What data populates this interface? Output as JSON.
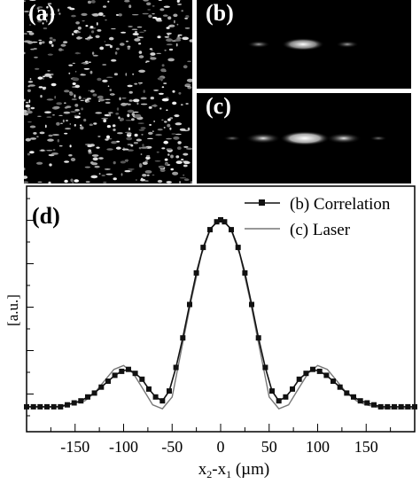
{
  "panels": {
    "a": {
      "label": "(a)"
    },
    "b": {
      "label": "(b)"
    },
    "c": {
      "label": "(c)"
    }
  },
  "chart_data": {
    "type": "line",
    "panel_label": "(d)",
    "xlabel": "x2-x1 (µm)",
    "ylabel": "[a.u.]",
    "xlim": [
      -200,
      200
    ],
    "xticks": [
      -150,
      -100,
      -50,
      0,
      50,
      100,
      150
    ],
    "series": [
      {
        "name": "(b) Correlation",
        "marker": "square",
        "color": "#111111",
        "x": [
          -200,
          -193,
          -186,
          -179,
          -172,
          -165,
          -158,
          -151,
          -144,
          -137,
          -130,
          -123,
          -116,
          -109,
          -102,
          -95,
          -88,
          -81,
          -74,
          -67,
          -60,
          -53,
          -46,
          -39,
          -32,
          -25,
          -18,
          -11,
          -4,
          0,
          4,
          11,
          18,
          25,
          32,
          39,
          46,
          53,
          60,
          67,
          74,
          81,
          88,
          95,
          102,
          109,
          116,
          123,
          130,
          137,
          144,
          151,
          158,
          165,
          172,
          179,
          186,
          193,
          200
        ],
        "y": [
          0.05,
          0.05,
          0.05,
          0.05,
          0.05,
          0.05,
          0.06,
          0.07,
          0.08,
          0.1,
          0.12,
          0.15,
          0.18,
          0.21,
          0.23,
          0.24,
          0.22,
          0.19,
          0.14,
          0.1,
          0.08,
          0.13,
          0.25,
          0.4,
          0.57,
          0.73,
          0.86,
          0.95,
          0.99,
          1.0,
          0.99,
          0.95,
          0.86,
          0.73,
          0.57,
          0.4,
          0.25,
          0.13,
          0.08,
          0.1,
          0.14,
          0.19,
          0.22,
          0.24,
          0.23,
          0.21,
          0.18,
          0.15,
          0.12,
          0.1,
          0.08,
          0.07,
          0.06,
          0.05,
          0.05,
          0.05,
          0.05,
          0.05,
          0.05
        ]
      },
      {
        "name": "(c) Laser",
        "marker": "none",
        "color": "#777777",
        "x": [
          -200,
          -190,
          -180,
          -170,
          -160,
          -150,
          -140,
          -130,
          -120,
          -110,
          -100,
          -90,
          -80,
          -70,
          -60,
          -50,
          -40,
          -30,
          -20,
          -10,
          0,
          10,
          20,
          30,
          40,
          50,
          60,
          70,
          80,
          90,
          100,
          110,
          120,
          130,
          140,
          150,
          160,
          170,
          180,
          190,
          200
        ],
        "y": [
          0.05,
          0.05,
          0.05,
          0.05,
          0.06,
          0.07,
          0.08,
          0.12,
          0.18,
          0.24,
          0.26,
          0.22,
          0.14,
          0.06,
          0.04,
          0.1,
          0.35,
          0.6,
          0.82,
          0.96,
          1.0,
          0.96,
          0.82,
          0.6,
          0.35,
          0.1,
          0.04,
          0.06,
          0.14,
          0.22,
          0.26,
          0.24,
          0.18,
          0.12,
          0.08,
          0.06,
          0.05,
          0.04,
          0.04,
          0.04,
          0.04
        ]
      }
    ],
    "legend_position": "top-right"
  }
}
